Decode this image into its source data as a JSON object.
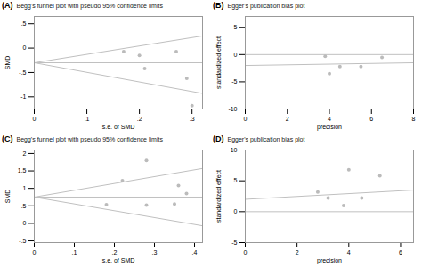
{
  "chart_data": [
    {
      "type": "scatter",
      "title": "Begg's funnel plot with pseudo 95% confidence limits",
      "annotations": [
        "(A)"
      ],
      "xlabel": "s.e. of SMD",
      "ylabel": "SMD",
      "xlim": [
        0,
        0.32
      ],
      "ylim": [
        -1.25,
        0.65
      ],
      "xticks": [
        0,
        {
          "value": 0.1,
          "label": ".1"
        },
        {
          "value": 0.2,
          "label": ".2"
        },
        {
          "value": 0.3,
          "label": ".3"
        }
      ],
      "yticks": [
        -1,
        {
          "value": -0.5,
          "label": "-.5"
        },
        0,
        {
          "value": 0.5,
          "label": ".5"
        }
      ],
      "grid": false,
      "series": [
        {
          "type": "line",
          "color": "#c0c0c0",
          "x": [
            0,
            0.32
          ],
          "values": [
            -0.3,
            0.25
          ]
        },
        {
          "type": "line",
          "color": "#c0c0c0",
          "x": [
            0,
            0.32
          ],
          "values": [
            -0.3,
            -0.93
          ]
        },
        {
          "type": "line",
          "color": "#c0c0c0",
          "x": [
            0,
            0.32
          ],
          "values": [
            -0.3,
            -0.3
          ]
        },
        {
          "type": "scatter",
          "color": "#bbbbbb",
          "x": [
            0.17,
            0.2,
            0.27,
            0.21,
            0.29,
            0.3
          ],
          "values": [
            -0.07,
            -0.15,
            -0.07,
            -0.42,
            -0.62,
            -1.18
          ]
        }
      ]
    },
    {
      "type": "scatter",
      "title": "Egger's publication bias plot",
      "annotations": [
        "(B)"
      ],
      "xlabel": "precision",
      "ylabel": "standardized effect",
      "xlim": [
        0,
        8
      ],
      "ylim": [
        -10,
        7
      ],
      "xticks": [
        0,
        2,
        4,
        6,
        8
      ],
      "yticks": [
        -10,
        -5,
        0,
        5
      ],
      "grid": false,
      "series": [
        {
          "type": "line",
          "color": "#c0c0c0",
          "x": [
            0,
            8
          ],
          "values": [
            0.0,
            0.0
          ]
        },
        {
          "type": "line",
          "color": "#c0c0c0",
          "x": [
            0,
            8
          ],
          "values": [
            -2.0,
            -1.5
          ]
        },
        {
          "type": "scatter",
          "color": "#bbbbbb",
          "x": [
            3.8,
            4.0,
            4.5,
            6.5,
            5.5
          ],
          "values": [
            -0.3,
            -3.5,
            -2.2,
            -0.5,
            -2.2
          ]
        }
      ]
    },
    {
      "type": "scatter",
      "title": "Begg's funnel plot with pseudo 95% confidence limits",
      "annotations": [
        "(C)"
      ],
      "xlabel": "s.e. of SMD",
      "ylabel": "SMD",
      "xlim": [
        0,
        0.42
      ],
      "ylim": [
        -0.55,
        2.1
      ],
      "xticks": [
        0,
        {
          "value": 0.1,
          "label": ".1"
        },
        {
          "value": 0.2,
          "label": ".2"
        },
        {
          "value": 0.3,
          "label": ".3"
        },
        {
          "value": 0.4,
          "label": ".4"
        }
      ],
      "yticks": [
        {
          "value": -0.5,
          "label": "-.5"
        },
        0,
        {
          "value": 0.5,
          "label": ".5"
        },
        1,
        1.5,
        2
      ],
      "grid": false,
      "series": [
        {
          "type": "line",
          "color": "#c0c0c0",
          "x": [
            0,
            0.42
          ],
          "values": [
            0.75,
            1.57
          ]
        },
        {
          "type": "line",
          "color": "#c0c0c0",
          "x": [
            0,
            0.42
          ],
          "values": [
            0.75,
            -0.07
          ]
        },
        {
          "type": "line",
          "color": "#c0c0c0",
          "x": [
            0,
            0.42
          ],
          "values": [
            0.75,
            0.75
          ]
        },
        {
          "type": "scatter",
          "color": "#bbbbbb",
          "x": [
            0.18,
            0.22,
            0.28,
            0.28,
            0.35,
            0.36,
            0.38
          ],
          "values": [
            0.53,
            1.22,
            0.52,
            1.8,
            0.55,
            1.08,
            0.85
          ]
        }
      ]
    },
    {
      "type": "scatter",
      "title": "Egger's publication bias plot",
      "annotations": [
        "(D)"
      ],
      "xlabel": "precision",
      "ylabel": "standardized effect",
      "xlim": [
        0,
        6.5
      ],
      "ylim": [
        -5,
        10
      ],
      "xticks": [
        0,
        2,
        4,
        6
      ],
      "yticks": [
        -5,
        0,
        5,
        10
      ],
      "grid": false,
      "series": [
        {
          "type": "line",
          "color": "#c0c0c0",
          "x": [
            0,
            6.5
          ],
          "values": [
            0.0,
            0.0
          ]
        },
        {
          "type": "line",
          "color": "#c0c0c0",
          "x": [
            0,
            6.5
          ],
          "values": [
            2.0,
            3.5
          ]
        },
        {
          "type": "scatter",
          "color": "#bbbbbb",
          "x": [
            2.8,
            3.2,
            3.8,
            4.0,
            4.5,
            5.2
          ],
          "values": [
            3.2,
            2.2,
            1.0,
            6.8,
            2.2,
            5.8
          ]
        }
      ]
    }
  ]
}
